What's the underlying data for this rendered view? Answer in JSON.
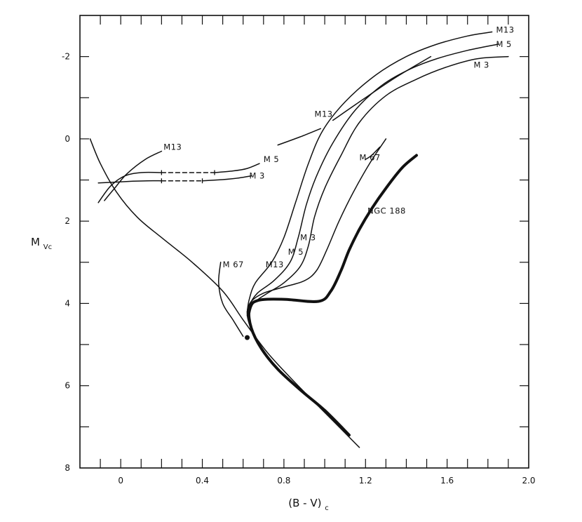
{
  "chart_data": {
    "type": "line",
    "xlabel": "(B - V)",
    "xlabel_subscript": "c",
    "ylabel": "M",
    "ylabel_subscript": "Vc",
    "xlim": [
      -0.2,
      2.0
    ],
    "ylim": [
      8,
      -3
    ],
    "y_inverted": true,
    "grid": false,
    "x_ticks": [
      0,
      0.4,
      0.8,
      1.2,
      1.6,
      2.0
    ],
    "x_tick_labels": [
      "0",
      "0.4",
      "0.8",
      "1.2",
      "1.6",
      "2.0"
    ],
    "y_ticks": [
      -2,
      0,
      2,
      4,
      6,
      8
    ],
    "y_tick_labels": [
      "-2",
      "0",
      "2",
      "4",
      "6",
      "8"
    ],
    "series": [
      {
        "name": "",
        "style": "thin",
        "points": [
          [
            -0.15,
            0.0
          ],
          [
            -0.1,
            0.6
          ],
          [
            -0.02,
            1.3
          ],
          [
            0.08,
            1.9
          ],
          [
            0.2,
            2.4
          ],
          [
            0.35,
            3.0
          ],
          [
            0.5,
            3.7
          ],
          [
            0.6,
            4.4
          ],
          [
            0.72,
            5.2
          ],
          [
            0.85,
            5.9
          ],
          [
            0.95,
            6.4
          ],
          [
            1.05,
            6.9
          ],
          [
            1.17,
            7.5
          ]
        ]
      },
      {
        "name": "NGC 188",
        "style": "thick",
        "points": [
          [
            1.45,
            0.4
          ],
          [
            1.38,
            0.7
          ],
          [
            1.3,
            1.2
          ],
          [
            1.23,
            1.7
          ],
          [
            1.17,
            2.2
          ],
          [
            1.12,
            2.7
          ],
          [
            1.08,
            3.2
          ],
          [
            1.03,
            3.7
          ],
          [
            0.97,
            3.95
          ],
          [
            0.8,
            3.9
          ],
          [
            0.67,
            3.93
          ],
          [
            0.63,
            4.15
          ],
          [
            0.64,
            4.6
          ],
          [
            0.69,
            5.1
          ],
          [
            0.77,
            5.6
          ],
          [
            0.88,
            6.1
          ],
          [
            1.0,
            6.6
          ],
          [
            1.12,
            7.2
          ]
        ]
      },
      {
        "name": "M 67",
        "style": "thin",
        "points": [
          [
            1.3,
            0.0
          ],
          [
            1.22,
            0.6
          ],
          [
            1.14,
            1.3
          ],
          [
            1.07,
            2.0
          ],
          [
            1.01,
            2.7
          ],
          [
            0.96,
            3.2
          ],
          [
            0.9,
            3.45
          ],
          [
            0.8,
            3.6
          ],
          [
            0.7,
            3.75
          ],
          [
            0.64,
            3.95
          ],
          [
            0.62,
            4.2
          ],
          [
            0.63,
            4.5
          ],
          [
            0.66,
            4.8
          ]
        ]
      },
      {
        "name": "M 67",
        "style": "thin",
        "points": [
          [
            0.49,
            3.0
          ],
          [
            0.48,
            3.5
          ],
          [
            0.5,
            4.0
          ],
          [
            0.55,
            4.4
          ],
          [
            0.6,
            4.8
          ]
        ]
      },
      {
        "name": "M 13",
        "style": "thin",
        "points": [
          [
            1.82,
            -2.6
          ],
          [
            1.7,
            -2.5
          ],
          [
            1.55,
            -2.3
          ],
          [
            1.4,
            -2.0
          ],
          [
            1.25,
            -1.55
          ],
          [
            1.1,
            -0.9
          ],
          [
            0.99,
            -0.2
          ],
          [
            0.92,
            0.6
          ],
          [
            0.86,
            1.5
          ],
          [
            0.8,
            2.4
          ],
          [
            0.74,
            3.0
          ],
          [
            0.66,
            3.5
          ],
          [
            0.63,
            3.9
          ],
          [
            0.62,
            4.2
          ]
        ]
      },
      {
        "name": "M 5",
        "style": "thin",
        "points": [
          [
            1.85,
            -2.3
          ],
          [
            1.7,
            -2.15
          ],
          [
            1.55,
            -1.95
          ],
          [
            1.42,
            -1.7
          ],
          [
            1.28,
            -1.3
          ],
          [
            1.15,
            -0.7
          ],
          [
            1.04,
            0.1
          ],
          [
            0.96,
            0.9
          ],
          [
            0.91,
            1.6
          ],
          [
            0.87,
            2.4
          ],
          [
            0.83,
            3.0
          ],
          [
            0.75,
            3.45
          ],
          [
            0.67,
            3.75
          ],
          [
            0.63,
            4.05
          ],
          [
            0.62,
            4.3
          ]
        ]
      },
      {
        "name": "M 3",
        "style": "thin",
        "points": [
          [
            1.9,
            -2.0
          ],
          [
            1.75,
            -1.95
          ],
          [
            1.6,
            -1.75
          ],
          [
            1.45,
            -1.45
          ],
          [
            1.3,
            -1.05
          ],
          [
            1.17,
            -0.4
          ],
          [
            1.08,
            0.4
          ],
          [
            1.0,
            1.2
          ],
          [
            0.95,
            1.9
          ],
          [
            0.92,
            2.6
          ],
          [
            0.88,
            3.1
          ],
          [
            0.8,
            3.5
          ],
          [
            0.72,
            3.75
          ],
          [
            0.65,
            4.0
          ],
          [
            0.63,
            4.3
          ]
        ]
      },
      {
        "name": "M 13",
        "style": "thin",
        "points": [
          [
            0.77,
            0.15
          ],
          [
            0.88,
            -0.05
          ],
          [
            0.98,
            -0.25
          ]
        ]
      },
      {
        "name": "M 13",
        "style": "thin",
        "points": [
          [
            1.04,
            -0.45
          ],
          [
            1.2,
            -1.0
          ],
          [
            1.35,
            -1.5
          ],
          [
            1.52,
            -2.0
          ]
        ]
      },
      {
        "name": "M 13",
        "style": "thin",
        "points": [
          [
            -0.08,
            1.5
          ],
          [
            -0.03,
            1.2
          ],
          [
            0.03,
            0.85
          ],
          [
            0.12,
            0.5
          ],
          [
            0.2,
            0.3
          ]
        ]
      },
      {
        "name": "M 5",
        "style": "thin",
        "points": [
          [
            -0.11,
            1.55
          ],
          [
            -0.05,
            1.15
          ],
          [
            0.02,
            0.9
          ],
          [
            0.1,
            0.82
          ],
          [
            0.2,
            0.82
          ]
        ]
      },
      {
        "name": "M 5",
        "style": "dashed",
        "points": [
          [
            0.2,
            0.82
          ],
          [
            0.46,
            0.82
          ]
        ]
      },
      {
        "name": "M 5",
        "style": "thin",
        "points": [
          [
            0.46,
            0.82
          ],
          [
            0.55,
            0.78
          ],
          [
            0.62,
            0.72
          ],
          [
            0.68,
            0.6
          ]
        ]
      },
      {
        "name": "M 3",
        "style": "thin",
        "points": [
          [
            -0.11,
            1.07
          ],
          [
            -0.02,
            1.05
          ],
          [
            0.06,
            1.03
          ],
          [
            0.13,
            1.02
          ],
          [
            0.2,
            1.02
          ]
        ]
      },
      {
        "name": "M 3",
        "style": "dashed",
        "points": [
          [
            0.2,
            1.02
          ],
          [
            0.4,
            1.02
          ]
        ]
      },
      {
        "name": "M 3",
        "style": "thin",
        "points": [
          [
            0.4,
            1.02
          ],
          [
            0.5,
            0.99
          ],
          [
            0.58,
            0.95
          ],
          [
            0.64,
            0.9
          ]
        ]
      },
      {
        "name": "M 67",
        "style": "thin",
        "points": [
          [
            1.2,
            0.5
          ],
          [
            1.23,
            0.4
          ],
          [
            1.27,
            0.2
          ]
        ]
      }
    ],
    "markers": [
      {
        "x": 0.62,
        "y": 4.83
      }
    ],
    "annotations": [
      {
        "text": "M13",
        "x": 1.84,
        "y": -2.65
      },
      {
        "text": "M 5",
        "x": 1.84,
        "y": -2.3
      },
      {
        "text": "M 3",
        "x": 1.73,
        "y": -1.8
      },
      {
        "text": "M13",
        "x": 0.95,
        "y": -0.6
      },
      {
        "text": "M13",
        "x": 0.21,
        "y": 0.2
      },
      {
        "text": "M 5",
        "x": 0.7,
        "y": 0.5
      },
      {
        "text": "M 3",
        "x": 0.63,
        "y": 0.9
      },
      {
        "text": "M 67",
        "x": 1.17,
        "y": 0.45
      },
      {
        "text": "NGC 188",
        "x": 1.21,
        "y": 1.75
      },
      {
        "text": "M 3",
        "x": 0.88,
        "y": 2.4
      },
      {
        "text": "M 5",
        "x": 0.82,
        "y": 2.75
      },
      {
        "text": "M 67",
        "x": 0.5,
        "y": 3.05
      },
      {
        "text": "M13",
        "x": 0.71,
        "y": 3.05
      }
    ]
  }
}
